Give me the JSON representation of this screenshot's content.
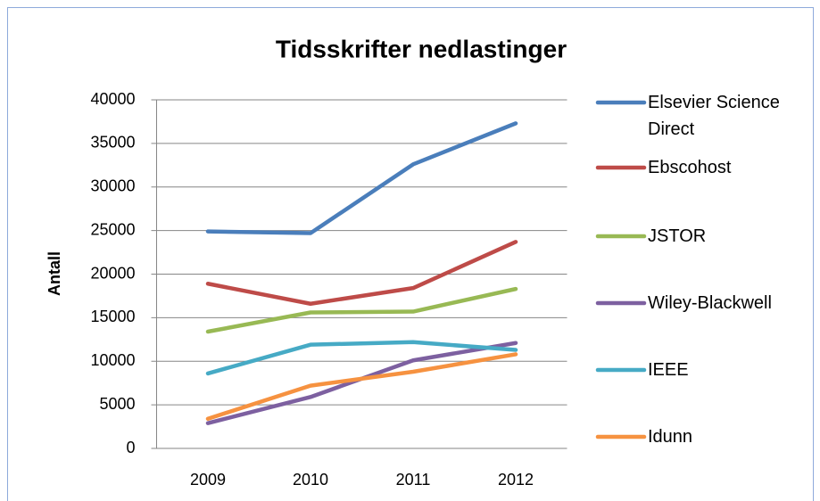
{
  "chart_data": {
    "type": "line",
    "title": "Tidsskrifter nedlastinger",
    "y_label": "Antall",
    "categories": [
      "2009",
      "2010",
      "2011",
      "2012"
    ],
    "series": [
      {
        "name": "Elsevier Science Direct",
        "color": "#4a7ebb",
        "values": [
          24900,
          24700,
          32600,
          37300
        ]
      },
      {
        "name": "Ebscohost",
        "color": "#be4b48",
        "values": [
          18900,
          16600,
          18400,
          23700
        ]
      },
      {
        "name": "JSTOR",
        "color": "#98b954",
        "values": [
          13400,
          15600,
          15700,
          18300
        ]
      },
      {
        "name": "Wiley-Blackwell",
        "color": "#7d60a0",
        "values": [
          2900,
          5900,
          10100,
          12100
        ]
      },
      {
        "name": "IEEE",
        "color": "#46aac5",
        "values": [
          8600,
          11900,
          12200,
          11300
        ]
      },
      {
        "name": "Idunn",
        "color": "#f69240",
        "values": [
          3400,
          7200,
          8800,
          10800
        ]
      }
    ],
    "ylim": [
      0,
      40000
    ],
    "yticks": [
      0,
      5000,
      10000,
      15000,
      20000,
      25000,
      30000,
      35000,
      40000
    ],
    "grid": true,
    "legend": "right"
  }
}
